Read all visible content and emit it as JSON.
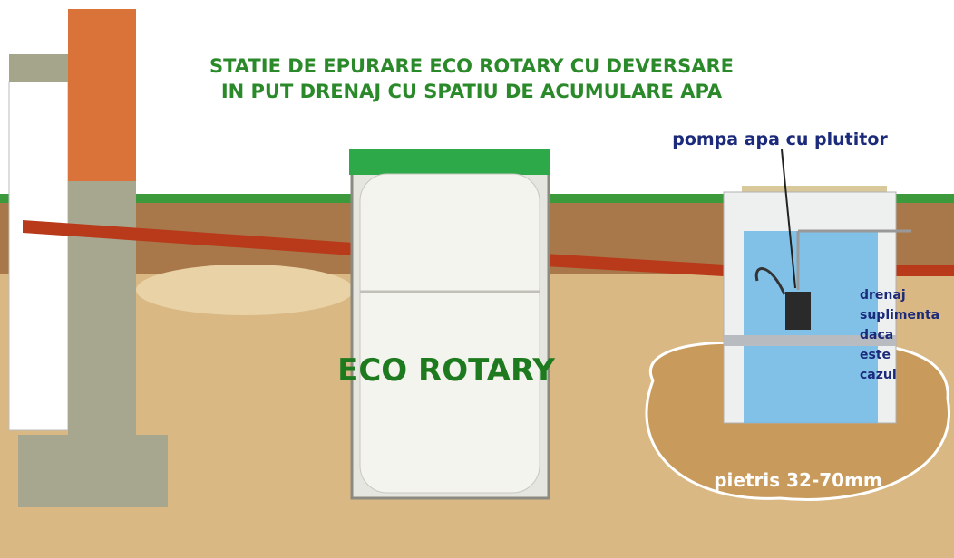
{
  "title_lines": [
    "STATIE DE EPURARE ECO ROTARY CU DEVERSARE",
    "IN PUT DRENAJ CU SPATIU DE ACUMULARE APA"
  ],
  "pump_label": "pompa apa cu plutitor",
  "tank_label": "ECO ROTARY",
  "drain_note": [
    "drenaj",
    "suplimenta",
    "daca",
    "este",
    "cazul"
  ],
  "gravel_label": "pietris 32-70mm"
}
